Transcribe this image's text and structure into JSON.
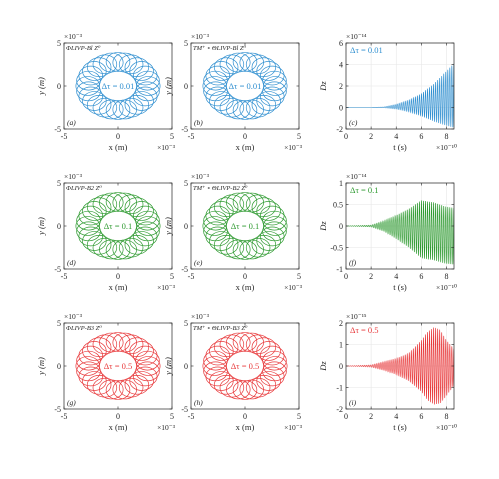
{
  "chart_data": [
    {
      "id": "a",
      "type": "line",
      "panel_label": "(a)",
      "title": "ΦLIVP-Bl Z⁰",
      "annotation": "Δτ = 0.01",
      "color": "#2f8fd0",
      "xlabel": "x (m)",
      "ylabel": "y (m)",
      "xlim": [
        -5,
        5
      ],
      "ylim": [
        -5,
        5
      ],
      "x_ticks": [
        "-5",
        "0",
        "5"
      ],
      "y_ticks": [
        "-5",
        "0",
        "5"
      ],
      "x_exponent": "×10⁻³",
      "y_exponent": "×10⁻³",
      "orbit": {
        "guiding_center_radius": 0.0028,
        "gyro_radius": 0.0011,
        "units": "m"
      }
    },
    {
      "id": "b",
      "type": "line",
      "panel_label": "(b)",
      "title": "TM⁺ ∘ ΘLIVP-Bl Z⁰",
      "annotation": "Δτ = 0.01",
      "color": "#2f8fd0",
      "xlabel": "x (m)",
      "ylabel": "y (m)",
      "xlim": [
        -5,
        5
      ],
      "ylim": [
        -5,
        5
      ],
      "x_ticks": [
        "-5",
        "0",
        "5"
      ],
      "y_ticks": [
        "-5",
        "0",
        "5"
      ],
      "x_exponent": "×10⁻³",
      "y_exponent": "×10⁻³",
      "orbit": {
        "guiding_center_radius": 0.0028,
        "gyro_radius": 0.0011,
        "units": "m"
      }
    },
    {
      "id": "c",
      "type": "line",
      "panel_label": "(c)",
      "annotation": "Δτ = 0.01",
      "color": "#2f8fd0",
      "xlabel": "t (s)",
      "ylabel": "Dz",
      "xlim": [
        0,
        8.6
      ],
      "ylim": [
        -2,
        6
      ],
      "x_ticks": [
        "0",
        "2",
        "4",
        "6",
        "8"
      ],
      "y_ticks": [
        "-2",
        "0",
        "2",
        "4",
        "6"
      ],
      "x_exponent": "×10⁻¹⁰",
      "y_exponent": "×10⁻¹⁴",
      "envelope": {
        "t": [
          0,
          2,
          3,
          4,
          5,
          6,
          7,
          8,
          8.6
        ],
        "upper": [
          0,
          0,
          0.05,
          0.3,
          0.7,
          1.3,
          2.2,
          3.4,
          4.1
        ],
        "lower": [
          0,
          0,
          -0.02,
          -0.15,
          -0.4,
          -0.8,
          -1.3,
          -1.7,
          -1.9
        ]
      }
    },
    {
      "id": "d",
      "type": "line",
      "panel_label": "(d)",
      "title": "ΦLIVP-B2 Z⁰",
      "annotation": "Δτ = 0.1",
      "color": "#2e9a30",
      "xlabel": "x (m)",
      "ylabel": "y (m)",
      "xlim": [
        -5,
        5
      ],
      "ylim": [
        -5,
        5
      ],
      "x_ticks": [
        "-5",
        "0",
        "5"
      ],
      "y_ticks": [
        "-5",
        "0",
        "5"
      ],
      "x_exponent": "×10⁻³",
      "y_exponent": "×10⁻³",
      "orbit": {
        "guiding_center_radius": 0.0028,
        "gyro_radius": 0.0011,
        "units": "m"
      }
    },
    {
      "id": "e",
      "type": "line",
      "panel_label": "(e)",
      "title": "TM⁺ ∘ ΘLIVP-B2 Z⁰",
      "annotation": "Δτ = 0.1",
      "color": "#2e9a30",
      "xlabel": "x (m)",
      "ylabel": "y (m)",
      "xlim": [
        -5,
        5
      ],
      "ylim": [
        -5,
        5
      ],
      "x_ticks": [
        "-5",
        "0",
        "5"
      ],
      "y_ticks": [
        "-5",
        "0",
        "5"
      ],
      "x_exponent": "×10⁻³",
      "y_exponent": "×10⁻³",
      "orbit": {
        "guiding_center_radius": 0.0028,
        "gyro_radius": 0.0011,
        "units": "m"
      }
    },
    {
      "id": "f",
      "type": "line",
      "panel_label": "(f)",
      "annotation": "Δτ = 0.1",
      "color": "#2e9a30",
      "xlabel": "t (s)",
      "ylabel": "Dz",
      "xlim": [
        0,
        8.6
      ],
      "ylim": [
        -1,
        1
      ],
      "x_ticks": [
        "0",
        "2",
        "4",
        "6",
        "8"
      ],
      "y_ticks": [
        "-1",
        "-0.5",
        "0",
        "0.5",
        "1"
      ],
      "x_exponent": "×10⁻¹⁰",
      "y_exponent": "×10⁻¹⁴",
      "envelope": {
        "t": [
          0,
          2,
          3,
          4,
          5,
          6,
          7,
          8,
          8.6
        ],
        "upper": [
          0,
          0.02,
          0.12,
          0.25,
          0.4,
          0.6,
          0.55,
          0.45,
          0.42
        ],
        "lower": [
          0,
          -0.02,
          -0.12,
          -0.3,
          -0.5,
          -0.75,
          -0.8,
          -0.88,
          -0.9
        ]
      }
    },
    {
      "id": "g",
      "type": "line",
      "panel_label": "(g)",
      "title": "ΦLIVP-B3 Z⁰",
      "annotation": "Δτ = 0.5",
      "color": "#e8383a",
      "xlabel": "x (m)",
      "ylabel": "y (m)",
      "xlim": [
        -5,
        5
      ],
      "ylim": [
        -5,
        5
      ],
      "x_ticks": [
        "-5",
        "0",
        "5"
      ],
      "y_ticks": [
        "-5",
        "0",
        "5"
      ],
      "x_exponent": "×10⁻³",
      "y_exponent": "×10⁻³",
      "orbit": {
        "guiding_center_radius": 0.0028,
        "gyro_radius": 0.0011,
        "units": "m"
      }
    },
    {
      "id": "h",
      "type": "line",
      "panel_label": "(h)",
      "title": "TM⁺ ∘ ΘLIVP-B3 Z⁰",
      "annotation": "Δτ = 0.5",
      "color": "#e8383a",
      "xlabel": "x (m)",
      "ylabel": "y (m)",
      "xlim": [
        -5,
        5
      ],
      "ylim": [
        -5,
        5
      ],
      "x_ticks": [
        "-5",
        "0",
        "5"
      ],
      "y_ticks": [
        "-5",
        "0",
        "5"
      ],
      "x_exponent": "×10⁻³",
      "y_exponent": "×10⁻³",
      "orbit": {
        "guiding_center_radius": 0.0028,
        "gyro_radius": 0.0011,
        "units": "m"
      }
    },
    {
      "id": "i",
      "type": "line",
      "panel_label": "(i)",
      "annotation": "Δτ = 0.5",
      "color": "#e8383a",
      "xlabel": "t (s)",
      "ylabel": "Dz",
      "xlim": [
        0,
        8.6
      ],
      "ylim": [
        -2,
        2
      ],
      "x_ticks": [
        "0",
        "2",
        "4",
        "6",
        "8"
      ],
      "y_ticks": [
        "-2",
        "-1",
        "0",
        "1",
        "2"
      ],
      "x_exponent": "×10⁻¹⁰",
      "y_exponent": "×10⁻¹⁵",
      "envelope": {
        "t": [
          0,
          1,
          2,
          3,
          4,
          5,
          6,
          6.5,
          7,
          7.5,
          8,
          8.6
        ],
        "upper": [
          0,
          0.02,
          0.05,
          0.2,
          0.35,
          0.6,
          1.2,
          1.6,
          1.8,
          1.7,
          1.2,
          0.8
        ],
        "lower": [
          0,
          -0.02,
          -0.05,
          -0.2,
          -0.4,
          -0.7,
          -1.2,
          -1.6,
          -1.8,
          -1.75,
          -1.4,
          -0.9
        ]
      }
    }
  ]
}
